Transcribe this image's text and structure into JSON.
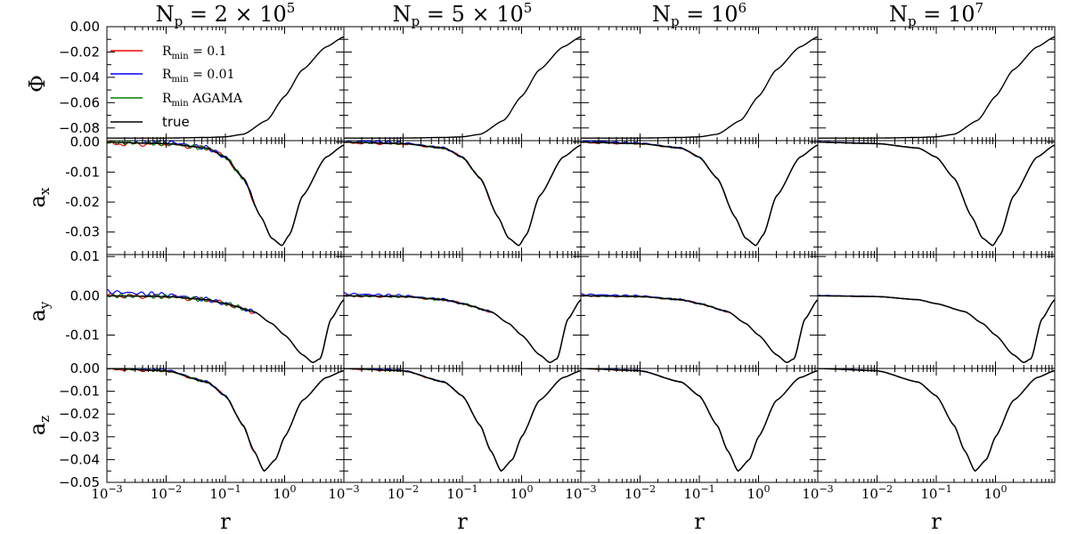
{
  "chart_data": {
    "type": "line",
    "x_scale": "log",
    "xlabel": "r",
    "xlim": [
      0.001,
      10
    ],
    "x_tick_labels": [
      "10^-3",
      "10^-2",
      "10^-1",
      "10^0"
    ],
    "columns": [
      "N_p = 2×10^5",
      "N_p = 5×10^5",
      "N_p = 10^6",
      "N_p = 10^7"
    ],
    "rows": [
      {
        "ylabel": "Φ",
        "ylim": [
          -0.09,
          0.0
        ],
        "ytick_labels": [
          "0.00",
          "−0.02",
          "−0.04",
          "−0.06",
          "−0.08"
        ]
      },
      {
        "ylabel": "a_x",
        "ylim": [
          -0.0375,
          0.0005
        ],
        "ytick_labels": [
          "0.00",
          "-0.01",
          "-0.02",
          "-0.03"
        ]
      },
      {
        "ylabel": "a_y",
        "ylim": [
          -0.0185,
          0.0105
        ],
        "ytick_labels": [
          "0.01",
          "0.00",
          "-0.01"
        ]
      },
      {
        "ylabel": "a_z",
        "ylim": [
          -0.05,
          0.0
        ],
        "ytick_labels": [
          "0.00",
          "−0.01",
          "−0.02",
          "−0.03",
          "−0.04",
          "−0.05"
        ]
      }
    ],
    "legend": {
      "location": "upper-left of top-left panel",
      "entries": [
        {
          "label": "R_min = 0.1",
          "color": "#ff0000"
        },
        {
          "label": "R_min = 0.01",
          "color": "#0000ff"
        },
        {
          "label": "R_min AGAMA",
          "color": "#008000"
        },
        {
          "label": "true",
          "color": "#000000"
        }
      ]
    },
    "true_curves": {
      "Φ": {
        "x": [
          0.001,
          0.01,
          0.05,
          0.1,
          0.2,
          0.5,
          1,
          2,
          5,
          10
        ],
        "y": [
          -0.088,
          -0.088,
          -0.0875,
          -0.087,
          -0.085,
          -0.074,
          -0.055,
          -0.034,
          -0.016,
          -0.008
        ]
      },
      "a_x": {
        "x": [
          0.001,
          0.01,
          0.05,
          0.1,
          0.2,
          0.4,
          0.6,
          0.9,
          1.2,
          2,
          5,
          10
        ],
        "y": [
          0.0,
          -0.0005,
          -0.002,
          -0.005,
          -0.012,
          -0.025,
          -0.032,
          -0.0345,
          -0.031,
          -0.018,
          -0.005,
          -0.001
        ]
      },
      "a_y": {
        "x": [
          0.001,
          0.01,
          0.05,
          0.1,
          0.3,
          0.6,
          1,
          2,
          3,
          4,
          6,
          10
        ],
        "y": [
          0.0,
          -0.0002,
          -0.001,
          -0.002,
          -0.004,
          -0.007,
          -0.01,
          -0.015,
          -0.017,
          -0.016,
          -0.006,
          -0.001
        ]
      },
      "a_z": {
        "x": [
          0.001,
          0.01,
          0.05,
          0.1,
          0.2,
          0.3,
          0.45,
          0.7,
          1,
          2,
          5,
          10
        ],
        "y": [
          0.0,
          -0.001,
          -0.006,
          -0.012,
          -0.025,
          -0.036,
          -0.045,
          -0.04,
          -0.03,
          -0.014,
          -0.004,
          -0.001
        ]
      }
    }
  }
}
